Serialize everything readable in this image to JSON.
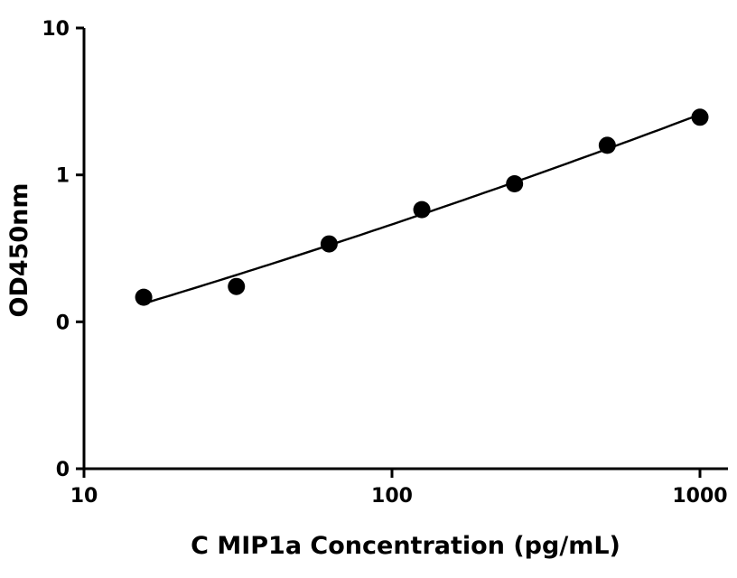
{
  "chart_data": {
    "type": "scatter",
    "title": "",
    "xlabel": "C MIP1a Concentration (pg/mL)",
    "ylabel": "OD450nm",
    "x_scale": "log",
    "y_scale": "log",
    "xlim": [
      10,
      1000
    ],
    "ylim": [
      0.01,
      10
    ],
    "x_ticks": [
      {
        "value": 10,
        "label": "10"
      },
      {
        "value": 100,
        "label": "100"
      },
      {
        "value": 1000,
        "label": "1000"
      }
    ],
    "y_ticks": [
      {
        "value": 0.01,
        "label": "0"
      },
      {
        "value": 0.1,
        "label": "0"
      },
      {
        "value": 1,
        "label": "1"
      },
      {
        "value": 10,
        "label": "10"
      }
    ],
    "grid": false,
    "legend": "none",
    "marker_color": "#000000",
    "series": [
      {
        "x": [
          15.625,
          31.25,
          62.5,
          125,
          250,
          500,
          1000
        ],
        "y": [
          0.147,
          0.174,
          0.339,
          0.58,
          0.87,
          1.59,
          2.47
        ],
        "fit": "smooth curve"
      }
    ]
  }
}
